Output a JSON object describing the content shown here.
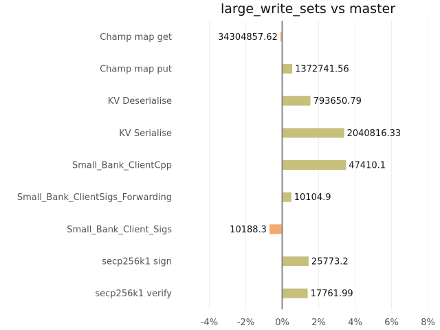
{
  "chart_data": {
    "type": "bar",
    "orientation": "horizontal",
    "title": "large_write_sets vs master",
    "xlabel": "",
    "ylabel": "",
    "xlim": [
      -4.5,
      8.2
    ],
    "x_ticks": [
      -4,
      -2,
      0,
      2,
      4,
      6,
      8
    ],
    "x_tick_labels": [
      "-4%",
      "-2%",
      "0%",
      "2%",
      "4%",
      "6%",
      "8%"
    ],
    "grid": "vertical",
    "categories": [
      "Champ map get",
      "Champ map put",
      "KV Deserialise",
      "KV Serialise",
      "Small_Bank_ClientCpp",
      "Small_Bank_ClientSigs_Forwarding",
      "Small_Bank_Client_Sigs",
      "secp256k1 sign",
      "secp256k1 verify"
    ],
    "values": [
      -0.1,
      0.55,
      1.55,
      3.4,
      3.5,
      0.5,
      -0.7,
      1.45,
      1.4
    ],
    "value_labels": [
      "34304857.62",
      "1372741.56",
      "793650.79",
      "2040816.33",
      "47410.1",
      "10104.9",
      "10188.3",
      "25773.2",
      "17761.99"
    ],
    "colors": {
      "positive": "#c5c17c",
      "negative": "#f3ab6b",
      "zero_line": "#888888",
      "grid": "#eeeeee"
    }
  }
}
